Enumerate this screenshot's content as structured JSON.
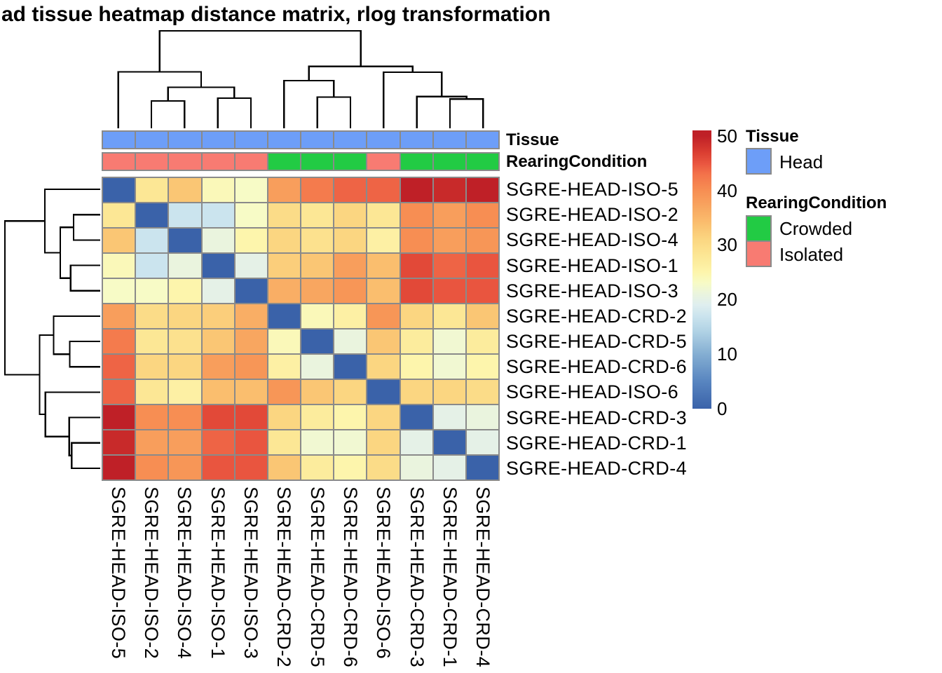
{
  "title": "ad tissue heatmap distance matrix, rlog transformation",
  "annotation_tracks": {
    "tissue_label": "Tissue",
    "rearing_label": "RearingCondition"
  },
  "legend": {
    "tissue": {
      "header": "Tissue",
      "items": [
        {
          "label": "Head",
          "color": "#6D9EF8"
        }
      ]
    },
    "rearing": {
      "header": "RearingCondition",
      "items": [
        {
          "label": "Crowded",
          "color": "#22CB44"
        },
        {
          "label": "Isolated",
          "color": "#F87B72"
        }
      ]
    }
  },
  "colorbar": {
    "ticks": [
      50,
      40,
      30,
      20,
      10,
      0
    ],
    "vmin": 0,
    "vmax": 51
  },
  "chart_data": {
    "type": "heatmap",
    "title": "ad tissue heatmap distance matrix, rlog transformation",
    "rows": [
      "SGRE-HEAD-ISO-5",
      "SGRE-HEAD-ISO-2",
      "SGRE-HEAD-ISO-4",
      "SGRE-HEAD-ISO-1",
      "SGRE-HEAD-ISO-3",
      "SGRE-HEAD-CRD-2",
      "SGRE-HEAD-CRD-5",
      "SGRE-HEAD-CRD-6",
      "SGRE-HEAD-ISO-6",
      "SGRE-HEAD-CRD-3",
      "SGRE-HEAD-CRD-1",
      "SGRE-HEAD-CRD-4"
    ],
    "columns": [
      "SGRE-HEAD-ISO-5",
      "SGRE-HEAD-ISO-2",
      "SGRE-HEAD-ISO-4",
      "SGRE-HEAD-ISO-1",
      "SGRE-HEAD-ISO-3",
      "SGRE-HEAD-CRD-2",
      "SGRE-HEAD-CRD-5",
      "SGRE-HEAD-CRD-6",
      "SGRE-HEAD-ISO-6",
      "SGRE-HEAD-CRD-3",
      "SGRE-HEAD-CRD-1",
      "SGRE-HEAD-CRD-4"
    ],
    "values": [
      [
        0,
        28,
        33,
        24,
        23,
        38,
        42,
        44,
        44,
        50,
        49,
        50
      ],
      [
        28,
        0,
        17,
        17,
        23,
        30,
        28,
        31,
        28,
        40,
        38,
        40
      ],
      [
        33,
        17,
        0,
        21,
        25,
        31,
        29,
        31,
        26,
        40,
        38,
        39
      ],
      [
        24,
        17,
        21,
        0,
        20,
        32,
        33,
        38,
        34,
        46,
        44,
        45
      ],
      [
        23,
        23,
        25,
        20,
        0,
        36,
        37,
        39,
        34,
        46,
        45,
        45
      ],
      [
        38,
        30,
        31,
        32,
        36,
        0,
        24,
        26,
        39,
        31,
        28,
        33
      ],
      [
        42,
        28,
        29,
        33,
        37,
        24,
        0,
        21,
        33,
        27,
        22,
        27
      ],
      [
        44,
        31,
        31,
        38,
        39,
        26,
        21,
        0,
        31,
        25,
        22,
        25
      ],
      [
        44,
        28,
        26,
        34,
        34,
        39,
        33,
        31,
        0,
        31,
        31,
        30
      ],
      [
        50,
        40,
        40,
        46,
        46,
        31,
        27,
        25,
        31,
        0,
        20,
        21
      ],
      [
        49,
        38,
        38,
        44,
        45,
        28,
        22,
        22,
        31,
        20,
        0,
        20
      ],
      [
        50,
        40,
        39,
        45,
        45,
        33,
        27,
        25,
        30,
        21,
        20,
        0
      ]
    ],
    "value_range": [
      0,
      51
    ],
    "colormap_stops": [
      [
        0,
        "#3A62A9"
      ],
      [
        5,
        "#5885C0"
      ],
      [
        10,
        "#84AED2"
      ],
      [
        14,
        "#AFD1E4"
      ],
      [
        17,
        "#CBE4EE"
      ],
      [
        19,
        "#DFEEEF"
      ],
      [
        21,
        "#EAF4DE"
      ],
      [
        23,
        "#F7FBC6"
      ],
      [
        25,
        "#FDF5AC"
      ],
      [
        28,
        "#FCE795"
      ],
      [
        31,
        "#FBD681"
      ],
      [
        34,
        "#FABE6E"
      ],
      [
        37,
        "#F8A660"
      ],
      [
        40,
        "#F78E53"
      ],
      [
        43,
        "#F3724A"
      ],
      [
        45,
        "#E9553F"
      ],
      [
        47,
        "#DA3D31"
      ],
      [
        50,
        "#BF2027"
      ]
    ],
    "row_annotations": {
      "Tissue": [
        "Head",
        "Head",
        "Head",
        "Head",
        "Head",
        "Head",
        "Head",
        "Head",
        "Head",
        "Head",
        "Head",
        "Head"
      ],
      "RearingCondition": [
        "Isolated",
        "Isolated",
        "Isolated",
        "Isolated",
        "Isolated",
        "Crowded",
        "Crowded",
        "Crowded",
        "Isolated",
        "Crowded",
        "Crowded",
        "Crowded"
      ]
    },
    "annotation_colors": {
      "Head": "#6D9EF8",
      "Crowded": "#22CB44",
      "Isolated": "#F87B72"
    },
    "grid_color": "#8A8A8A",
    "dendrogram": {
      "merges": [
        {
          "a": "L1",
          "b": "L2",
          "h": 0.28
        },
        {
          "a": "L3",
          "b": "L4",
          "h": 0.31
        },
        {
          "a": "M0",
          "b": "M1",
          "h": 0.42
        },
        {
          "a": "L0",
          "b": "M2",
          "h": 0.58
        },
        {
          "a": "L6",
          "b": "L7",
          "h": 0.32
        },
        {
          "a": "L5",
          "b": "M4",
          "h": 0.49
        },
        {
          "a": "L10",
          "b": "L11",
          "h": 0.3
        },
        {
          "a": "L9",
          "b": "M6",
          "h": 0.325
        },
        {
          "a": "L8",
          "b": "M7",
          "h": 0.575
        },
        {
          "a": "M5",
          "b": "M8",
          "h": 0.635
        },
        {
          "a": "M3",
          "b": "M9",
          "h": 1.0
        }
      ]
    }
  }
}
